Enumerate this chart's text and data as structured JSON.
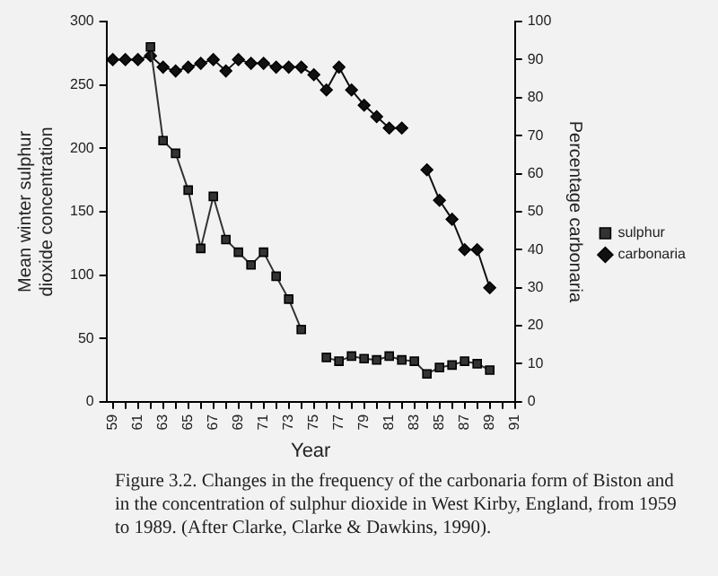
{
  "chart_data": {
    "type": "line",
    "xlabel": "Year",
    "ylabel": "Mean winter sulphur dioxide concentration",
    "y2label": "Percentage carbonaria",
    "x": [
      59,
      60,
      61,
      62,
      63,
      64,
      65,
      66,
      67,
      68,
      69,
      70,
      71,
      72,
      73,
      74,
      75,
      76,
      77,
      78,
      79,
      80,
      81,
      82,
      83,
      84,
      85,
      86,
      87,
      88,
      89
    ],
    "series": [
      {
        "name": "sulphur",
        "color": "#333333",
        "marker": "square",
        "values": [
          null,
          null,
          null,
          280,
          206,
          196,
          167,
          121,
          162,
          128,
          118,
          108,
          118,
          99,
          81,
          57,
          null,
          35,
          32,
          36,
          34,
          33,
          36,
          33,
          32,
          22,
          27,
          29,
          32,
          30,
          25
        ]
      },
      {
        "name": "carbonaria",
        "color": "#111111",
        "marker": "diamond",
        "axis": "y2",
        "values": [
          90,
          90,
          90,
          91,
          88,
          87,
          88,
          89,
          90,
          87,
          90,
          89,
          89,
          88,
          88,
          88,
          86,
          82,
          88,
          82,
          78,
          75,
          72,
          72,
          null,
          61,
          53,
          48,
          40,
          40,
          30
        ]
      }
    ],
    "xlim": [
      58.5,
      91
    ],
    "xticks": [
      59,
      {
        "value": 60,
        "label": null
      },
      61,
      {
        "value": 62,
        "label": null
      },
      63,
      {
        "value": 64,
        "label": null
      },
      65,
      {
        "value": 66,
        "label": null
      },
      67,
      {
        "value": 68,
        "label": null
      },
      69,
      {
        "value": 70,
        "label": null
      },
      71,
      {
        "value": 72,
        "label": null
      },
      73,
      {
        "value": 74,
        "label": null
      },
      75,
      {
        "value": 76,
        "label": null
      },
      77,
      {
        "value": 78,
        "label": null
      },
      79,
      {
        "value": 80,
        "label": null
      },
      81,
      {
        "value": 82,
        "label": null
      },
      83,
      {
        "value": 84,
        "label": null
      },
      85,
      {
        "value": 86,
        "label": null
      },
      87,
      {
        "value": 88,
        "label": null
      },
      89,
      {
        "value": 90,
        "label": null
      },
      91
    ],
    "ylim": [
      0,
      300
    ],
    "yticks": [
      0,
      50,
      100,
      150,
      200,
      250,
      300
    ],
    "y2lim": [
      0,
      100
    ],
    "y2ticks": [
      0,
      10,
      20,
      30,
      40,
      50,
      60,
      70,
      80,
      90,
      100
    ],
    "grid": false,
    "legend": "right",
    "line_style": "solid",
    "annotations": [
      "Figure 3.2. Changes in the frequency of the carbonaria form of Biston and in the concentration of sulphur dioxide in West Kirby, England, from 1959 to 1989. (After Clarke, Clarke & Dawkins, 1990)."
    ]
  }
}
